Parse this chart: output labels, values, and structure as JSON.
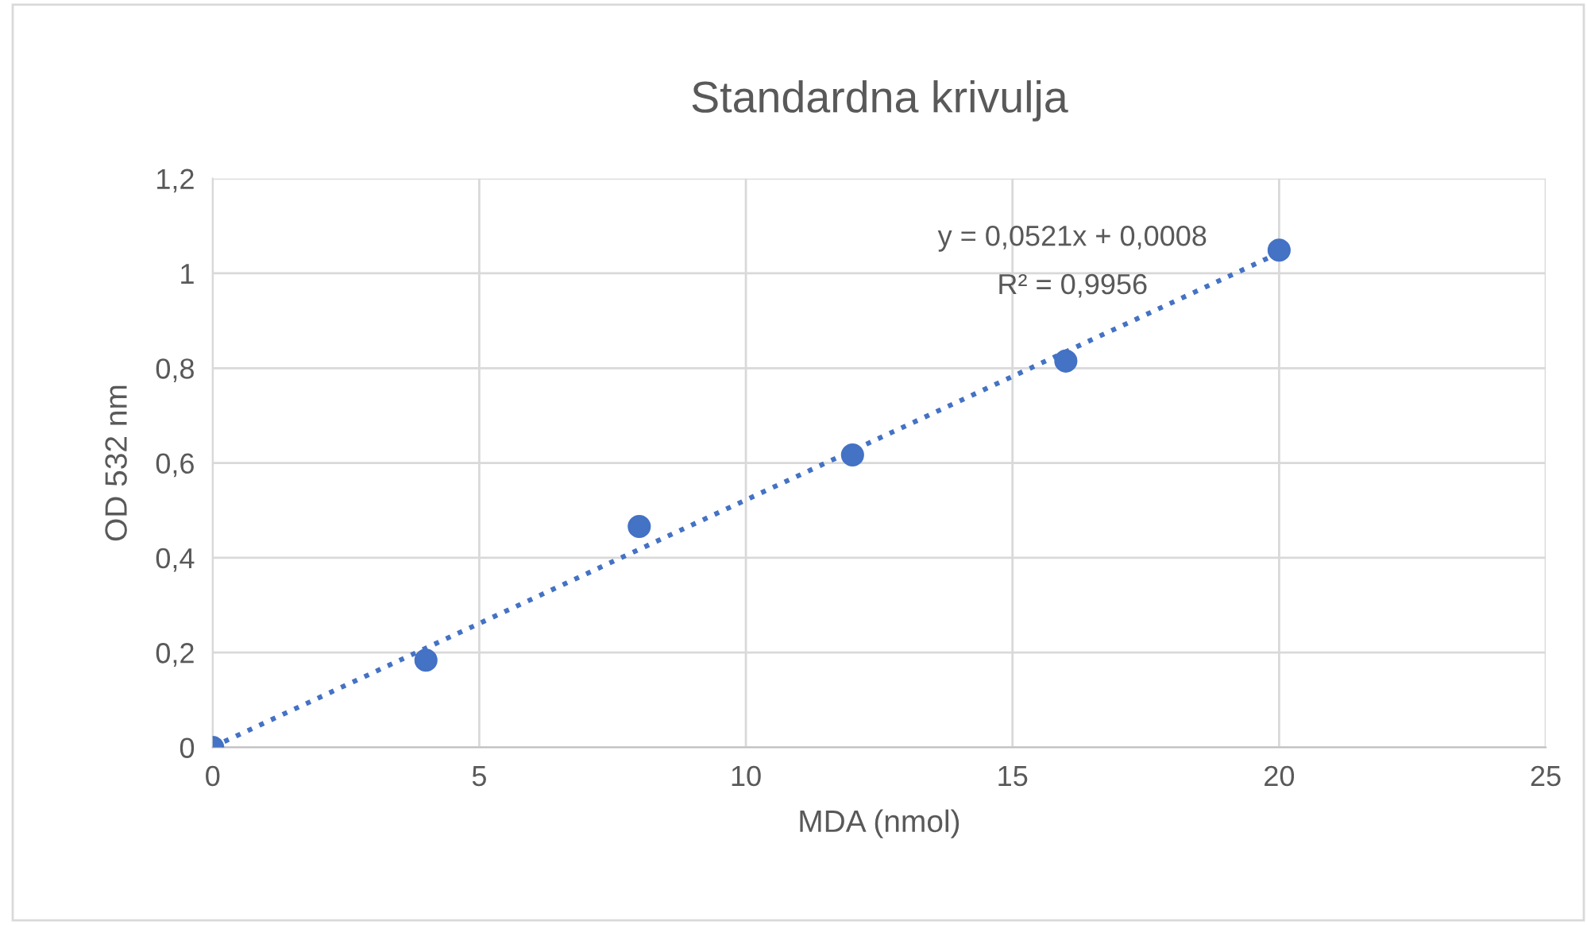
{
  "chart_data": {
    "type": "scatter",
    "title": "Standardna krivulja",
    "xlabel": "MDA (nmol)",
    "ylabel": "OD 532 nm",
    "series": [
      {
        "color": "#4472c4",
        "marker": "circle",
        "x": [
          0,
          4,
          8,
          12,
          16,
          20
        ],
        "values": [
          0,
          0.184,
          0.466,
          0.617,
          0.815,
          1.049
        ]
      },
      {
        "type": "line",
        "color": "#4472c4",
        "marker": "none",
        "line_style": "dotted",
        "x": [
          0,
          20
        ],
        "values": [
          0.001,
          1.043
        ]
      }
    ],
    "annotations": [
      "y = 0,0521x + 0,0008",
      "R² = 0,9956"
    ],
    "xlim": [
      0,
      25
    ],
    "xticks": [
      0,
      5,
      10,
      15,
      20,
      25
    ],
    "ylim": [
      0,
      1.2
    ],
    "yticks": [
      0,
      {
        "value": 0.2,
        "label": "0,2"
      },
      {
        "value": 0.4,
        "label": "0,4"
      },
      {
        "value": 0.6,
        "label": "0,6"
      },
      {
        "value": 0.8,
        "label": "0,8"
      },
      1,
      {
        "value": 1.2,
        "label": "1,2"
      }
    ],
    "grid": true,
    "legend": false
  }
}
